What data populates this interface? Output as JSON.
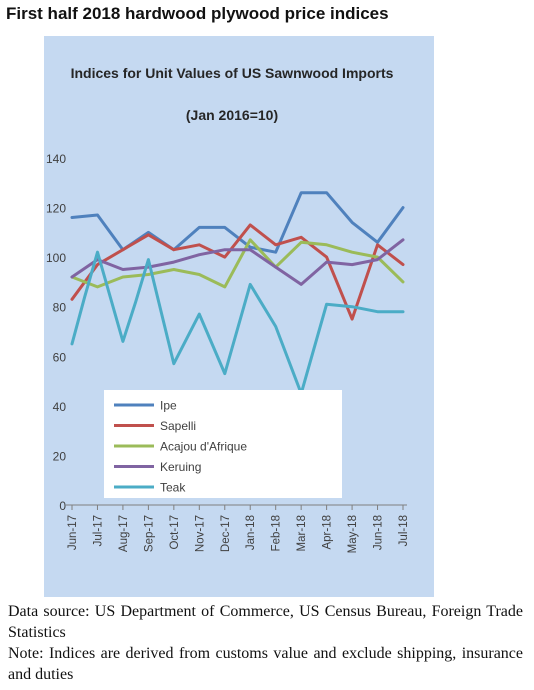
{
  "heading": "First half 2018 hardwood plywood price indices",
  "chart_data": {
    "type": "line",
    "title": "Indices for Unit Values of US Sawnwood Imports",
    "subtitle": "(Jan 2016=10)",
    "xlabel": "",
    "ylabel": "",
    "ylim": [
      0,
      140
    ],
    "yticks": [
      0,
      20,
      40,
      60,
      80,
      100,
      120,
      140
    ],
    "grid": false,
    "legend_position": "lower-left inside",
    "categories": [
      "Jun-17",
      "Jul-17",
      "Aug-17",
      "Sep-17",
      "Oct-17",
      "Nov-17",
      "Dec-17",
      "Jan-18",
      "Feb-18",
      "Mar-18",
      "Apr-18",
      "May-18",
      "Jun-18",
      "Jul-18"
    ],
    "series": [
      {
        "name": "Ipe",
        "color": "#4f81bd",
        "x": [
          "Jun-17",
          "Jul-17",
          "Aug-17",
          "Sep-17",
          "Oct-17",
          "Nov-17",
          "Dec-17",
          "Jan-18",
          "Feb-18",
          "Mar-18",
          "Apr-18",
          "May-18",
          "Jun-18",
          "Jul-18"
        ],
        "values": [
          116,
          117,
          103,
          110,
          103,
          112,
          112,
          104,
          102,
          126,
          126,
          114,
          106,
          120
        ]
      },
      {
        "name": "Sapelli",
        "color": "#c0504d",
        "x": [
          "Jun-17",
          "Jul-17",
          "Aug-17",
          "Sep-17",
          "Oct-17",
          "Nov-17",
          "Dec-17",
          "Jan-18",
          "Feb-18",
          "Mar-18",
          "Apr-18",
          "May-18",
          "Jun-18",
          "Jul-18"
        ],
        "values": [
          83,
          97,
          103,
          109,
          103,
          105,
          100,
          113,
          105,
          108,
          100,
          75,
          105,
          97
        ]
      },
      {
        "name": "Acajou d'Afrique",
        "color": "#9bbb59",
        "x": [
          "Jun-17",
          "Jul-17",
          "Aug-17",
          "Sep-17",
          "Oct-17",
          "Nov-17",
          "Dec-17",
          "Jan-18",
          "Feb-18",
          "Mar-18",
          "Apr-18",
          "May-18",
          "Jun-18",
          "Jul-18"
        ],
        "values": [
          92,
          88,
          92,
          93,
          95,
          93,
          88,
          107,
          96,
          106,
          105,
          102,
          100,
          90
        ]
      },
      {
        "name": "Keruing",
        "color": "#8064a2",
        "x": [
          "Jun-17",
          "Jul-17",
          "Aug-17",
          "Sep-17",
          "Oct-17",
          "Nov-17",
          "Dec-17",
          "Jan-18",
          "Feb-18",
          "Mar-18",
          "Apr-18",
          "May-18",
          "Jun-18",
          "Jul-18"
        ],
        "values": [
          92,
          99,
          95,
          96,
          98,
          101,
          103,
          103,
          96,
          89,
          98,
          97,
          99,
          107
        ]
      },
      {
        "name": "Teak",
        "color": "#4bacc6",
        "x": [
          "Jun-17",
          "Jun-17.5",
          "Jul-17",
          "Aug-17",
          "Aug-17.5",
          "Sep-17",
          "Oct-17",
          "Nov-17",
          "Dec-17",
          "Dec-17.5",
          "Jan-18",
          "Feb-18",
          "Mar-18",
          "Apr-18",
          "May-18",
          "Jun-18",
          "Jul-18"
        ],
        "values": [
          65,
          84,
          102,
          66,
          82,
          99,
          57,
          77,
          53,
          71,
          89,
          72,
          45,
          81,
          80,
          78,
          78
        ]
      }
    ]
  },
  "footer": {
    "source": "Data source: US Department of Commerce, US Census Bureau, Foreign Trade Statistics",
    "note": "Note: Indices are derived from customs value and exclude shipping, insurance and duties"
  }
}
